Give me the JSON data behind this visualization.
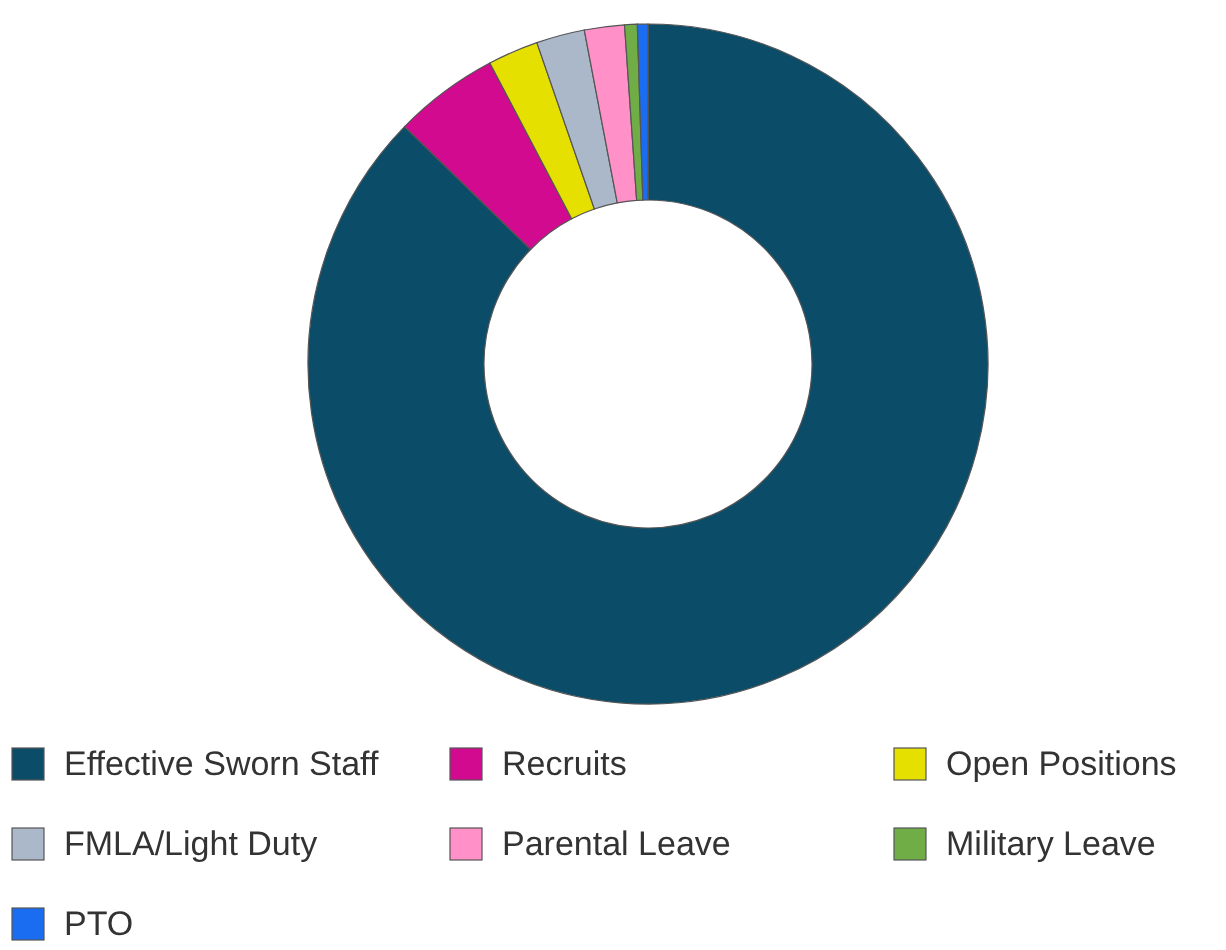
{
  "chart_data": {
    "type": "donut",
    "categories": [
      "Effective Sworn Staff",
      "Recruits",
      "Open Positions",
      "FMLA/Light Duty",
      "Parental Leave",
      "Military Leave",
      "PTO"
    ],
    "values": [
      87.3,
      5,
      2.4,
      2.3,
      1.9,
      0.6,
      0.5
    ],
    "colors": [
      "#0b4d68",
      "#d10a8f",
      "#e6e000",
      "#aab8c9",
      "#ff90c8",
      "#70ad47",
      "#1a6cf0"
    ],
    "legend": "bottom"
  }
}
